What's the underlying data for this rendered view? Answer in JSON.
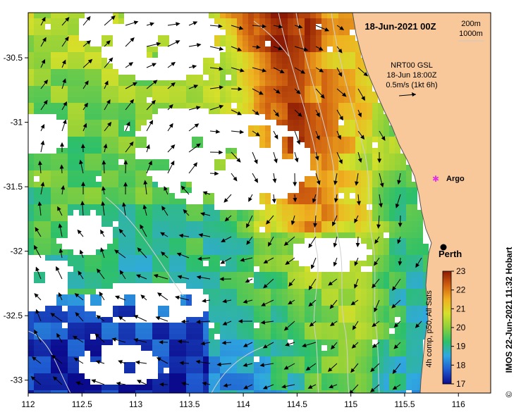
{
  "map": {
    "date_label": "18-Jun-2021 00Z",
    "contours": [
      "200m",
      "1000m"
    ],
    "current_info": [
      "NRT00 GSL",
      "18-Jun 18:00Z",
      "0.5m/s (1kt 6h)"
    ],
    "places": [
      {
        "name": "Argo",
        "lon": 115.75,
        "lat": -31.45,
        "marker": "pink-asterisk"
      },
      {
        "name": "Perth",
        "lon": 115.86,
        "lat": -31.95,
        "marker": "black-dot"
      }
    ],
    "credit": "IMOS 22-Jun-2021 11:32 Hobart",
    "copyright_symbol": "©",
    "extent": {
      "lon": [
        112.0,
        116.3
      ],
      "lat": [
        -33.1,
        -30.15
      ]
    },
    "lon_ticks": [
      "112",
      "112.5",
      "113",
      "113.5",
      "114",
      "114.5",
      "115",
      "115.5",
      "116"
    ],
    "lat_ticks": [
      "-30.5",
      "-31",
      "-31.5",
      "-32",
      "-32.5",
      "-33"
    ],
    "colorbar": {
      "label": "4h comp, p50, All Sats",
      "min": 17,
      "max": 23,
      "ticks": [
        "17",
        "18",
        "19",
        "20",
        "21",
        "22",
        "23"
      ],
      "colors": [
        "#0a0a8c",
        "#1f5ad0",
        "#30a8e0",
        "#2ec068",
        "#8cd03a",
        "#d6e02a",
        "#f0b020",
        "#d06010",
        "#8c1a04"
      ]
    },
    "colors": {
      "land": "#f9c89a",
      "no_data": "#ffffff",
      "coast": "#555555"
    }
  }
}
